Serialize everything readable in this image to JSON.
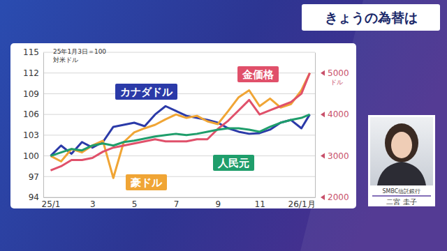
{
  "title": "きょうの為替は",
  "caption": {
    "company": "SMBC信託銀行",
    "name": "二宮 圭子"
  },
  "chart_data": {
    "type": "line",
    "subtitle": "25年1月3日＝100",
    "y_label": "対米ドル",
    "y2_label": "ドル",
    "x": [
      1,
      1.5,
      2,
      2.5,
      3,
      3.5,
      4,
      4.5,
      5,
      5.5,
      6,
      6.5,
      7,
      7.5,
      8,
      8.5,
      9,
      9.5,
      10,
      10.5,
      11,
      11.5,
      12,
      12.5,
      13,
      13.4
    ],
    "xlim": [
      0.65,
      13.65
    ],
    "xticks": [
      {
        "value": 1,
        "label": "25/1"
      },
      3,
      5,
      7,
      9,
      11,
      {
        "value": 13,
        "label": "26/1月"
      }
    ],
    "ylim": [
      94,
      115
    ],
    "yticks": [
      94,
      97,
      100,
      103,
      106,
      109,
      112,
      115
    ],
    "y2lim": [
      2000,
      5500
    ],
    "y2ticks": [
      2000,
      3000,
      4000,
      5000
    ],
    "grid": true,
    "series": [
      {
        "name": "カナダドル",
        "color": "#2b3aa8",
        "values": [
          100,
          101.5,
          100.3,
          102,
          101.2,
          102,
          104.2,
          104.5,
          104.8,
          104.3,
          106,
          107.2,
          106.5,
          105.8,
          105.5,
          105.2,
          104.8,
          104,
          103.5,
          103.2,
          103.3,
          103.8,
          104.8,
          105.2,
          104,
          106
        ]
      },
      {
        "name": "豪ドル",
        "color": "#f0a535",
        "values": [
          100,
          99.2,
          101,
          100.5,
          101.5,
          102.2,
          96.8,
          102,
          103.4,
          104,
          104.5,
          105.3,
          106,
          105.5,
          105.8,
          105,
          104.6,
          106.5,
          108.5,
          109.5,
          107.2,
          108.3,
          107,
          107.5,
          109.5,
          112
        ]
      },
      {
        "name": "金価格",
        "color": "#e0506a",
        "axis": "y2",
        "values": [
          2650,
          2750,
          2900,
          2900,
          2950,
          3100,
          3200,
          3250,
          3300,
          3350,
          3400,
          3350,
          3350,
          3350,
          3400,
          3400,
          3650,
          3850,
          4100,
          4350,
          4000,
          4100,
          4200,
          4300,
          4500,
          5000
        ]
      },
      {
        "name": "人民元",
        "color": "#1f9e6b",
        "values": [
          100,
          100.5,
          101,
          100.8,
          101.5,
          101.8,
          101.5,
          102,
          102.2,
          102.5,
          102.8,
          103,
          103.2,
          103,
          103.2,
          103.5,
          103.8,
          104,
          104,
          103.8,
          103.5,
          104.2,
          104.8,
          105.2,
          105.5,
          106
        ]
      }
    ]
  }
}
